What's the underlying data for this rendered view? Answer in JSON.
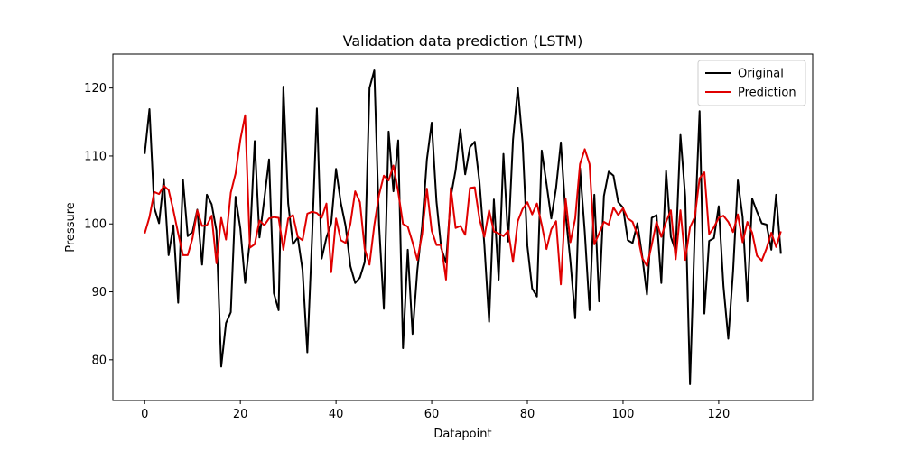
{
  "chart_data": {
    "type": "line",
    "title": "Validation data prediction (LSTM)",
    "xlabel": "Datapoint",
    "ylabel": "Pressure",
    "xlim": [
      -6.65,
      139.65
    ],
    "ylim": [
      74.0,
      125.0
    ],
    "x_ticks": [
      0,
      20,
      40,
      60,
      80,
      100,
      120
    ],
    "y_ticks": [
      80,
      90,
      100,
      110,
      120
    ],
    "grid": false,
    "legend_position": "top-right",
    "series": [
      {
        "name": "Original",
        "color": "#000000",
        "values": [
          110.3,
          116.9,
          102.4,
          100.1,
          106.6,
          95.4,
          99.8,
          88.4,
          106.5,
          98.2,
          98.8,
          102.1,
          94.0,
          104.3,
          102.9,
          99.0,
          79.0,
          85.4,
          87.0,
          104.0,
          99.3,
          91.3,
          97.5,
          112.2,
          98.0,
          103.6,
          109.5,
          89.8,
          87.3,
          120.2,
          103.0,
          97.0,
          98.0,
          93.2,
          81.1,
          98.1,
          117.0,
          94.9,
          98.0,
          100.1,
          108.1,
          103.1,
          99.7,
          93.8,
          91.3,
          92.1,
          94.4,
          120.0,
          122.6,
          99.8,
          87.5,
          113.6,
          104.8,
          112.3,
          81.7,
          96.2,
          83.8,
          93.2,
          99.6,
          109.5,
          114.9,
          103.3,
          96.4,
          94.3,
          104.0,
          107.9,
          113.9,
          107.3,
          111.3,
          112.1,
          106.1,
          97.0,
          85.6,
          103.6,
          91.8,
          110.3,
          97.4,
          112.4,
          120.0,
          112.0,
          96.8,
          90.5,
          89.3,
          110.8,
          105.9,
          100.8,
          105.3,
          112.0,
          101.4,
          94.5,
          86.1,
          108.2,
          98.8,
          87.3,
          104.3,
          88.6,
          104.1,
          107.7,
          107.1,
          103.2,
          102.4,
          97.6,
          97.2,
          100.1,
          95.3,
          89.6,
          100.9,
          101.3,
          91.3,
          107.8,
          98.1,
          96.0,
          113.1,
          104.0,
          76.4,
          99.0,
          116.6,
          86.8,
          97.5,
          97.9,
          102.6,
          90.8,
          83.1,
          93.0,
          106.4,
          101.0,
          88.6,
          103.7,
          101.8,
          100.1,
          99.9,
          96.2,
          104.3,
          95.6
        ]
      },
      {
        "name": "Prediction",
        "color": "#e00000",
        "values": [
          98.6,
          101.0,
          104.7,
          104.4,
          105.6,
          105.0,
          102.0,
          98.6,
          95.4,
          95.4,
          97.9,
          102.0,
          99.7,
          99.8,
          101.2,
          94.2,
          100.9,
          97.7,
          104.6,
          107.4,
          112.4,
          116.0,
          96.5,
          97.0,
          100.5,
          99.8,
          100.8,
          101.0,
          100.9,
          96.2,
          100.8,
          101.3,
          98.1,
          97.6,
          101.5,
          101.8,
          101.6,
          100.9,
          103.0,
          92.9,
          100.8,
          97.6,
          97.2,
          100.0,
          104.8,
          103.2,
          96.3,
          94.0,
          99.8,
          104.3,
          107.1,
          106.4,
          108.6,
          104.7,
          100.0,
          99.6,
          97.3,
          94.7,
          98.5,
          105.2,
          99.0,
          96.9,
          96.9,
          91.8,
          105.3,
          99.4,
          99.7,
          98.4,
          105.3,
          105.4,
          100.7,
          98.1,
          102.0,
          98.9,
          98.6,
          98.2,
          99.0,
          94.4,
          100.4,
          102.2,
          103.2,
          101.4,
          103.0,
          99.9,
          96.3,
          99.2,
          100.4,
          91.1,
          103.7,
          97.3,
          100.8,
          108.8,
          111.0,
          108.8,
          97.0,
          98.6,
          100.3,
          99.9,
          102.4,
          101.3,
          102.3,
          100.8,
          100.3,
          98.4,
          95.0,
          93.8,
          96.9,
          100.3,
          98.1,
          100.3,
          102.0,
          94.8,
          102.0,
          94.7,
          99.5,
          101.0,
          106.7,
          107.6,
          98.5,
          99.5,
          100.9,
          101.2,
          100.3,
          98.8,
          101.4,
          97.3,
          100.3,
          98.7,
          95.3,
          94.6,
          96.4,
          98.7,
          96.6,
          98.9
        ]
      }
    ]
  }
}
